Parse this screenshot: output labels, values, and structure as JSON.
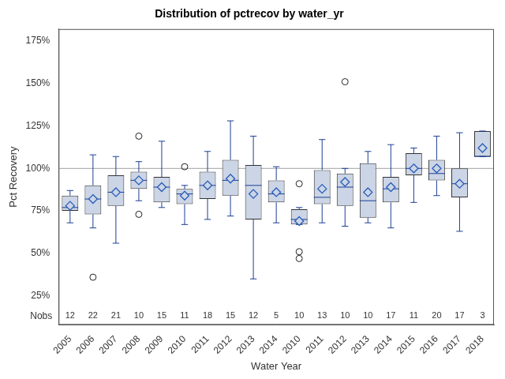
{
  "chart_data": {
    "type": "box",
    "title": "Distribution of pctrecov by water_yr",
    "x_label": "Water Year",
    "y_label": "Pct Recovery",
    "categories": [
      "2005",
      "2006",
      "2007",
      "2008",
      "2009",
      "2010",
      "2011",
      "2012",
      "2013",
      "2014",
      "2010",
      "2011",
      "2012",
      "2013",
      "2014",
      "2015",
      "2016",
      "2017",
      "2018"
    ],
    "boxes": [
      {
        "min": 68,
        "q1": 75,
        "median": 77,
        "q3": 84,
        "max": 87,
        "mean": 78,
        "outliers": []
      },
      {
        "min": 65,
        "q1": 73,
        "median": 82,
        "q3": 90,
        "max": 108,
        "mean": 82,
        "outliers": [
          36
        ]
      },
      {
        "min": 56,
        "q1": 78,
        "median": 86,
        "q3": 96,
        "max": 107,
        "mean": 86,
        "outliers": []
      },
      {
        "min": 81,
        "q1": 88,
        "median": 93,
        "q3": 98,
        "max": 104,
        "mean": 93,
        "outliers": [
          119,
          73
        ]
      },
      {
        "min": 77,
        "q1": 80,
        "median": 89,
        "q3": 95,
        "max": 116,
        "mean": 89,
        "outliers": []
      },
      {
        "min": 67,
        "q1": 79,
        "median": 85,
        "q3": 88,
        "max": 90,
        "mean": 84,
        "outliers": [
          101
        ]
      },
      {
        "min": 70,
        "q1": 82,
        "median": 90,
        "q3": 98,
        "max": 110,
        "mean": 90,
        "outliers": []
      },
      {
        "min": 72,
        "q1": 84,
        "median": 93,
        "q3": 105,
        "max": 128,
        "mean": 94,
        "outliers": []
      },
      {
        "min": 35,
        "q1": 70,
        "median": 90,
        "q3": 102,
        "max": 119,
        "mean": 85,
        "outliers": []
      },
      {
        "min": 68,
        "q1": 80,
        "median": 85,
        "q3": 93,
        "max": 101,
        "mean": 86,
        "outliers": []
      },
      {
        "min": 67,
        "q1": 67,
        "median": 70,
        "q3": 76,
        "max": 77,
        "mean": 69,
        "outliers": [
          91,
          51,
          47
        ]
      },
      {
        "min": 68,
        "q1": 79,
        "median": 83,
        "q3": 99,
        "max": 117,
        "mean": 88,
        "outliers": []
      },
      {
        "min": 66,
        "q1": 78,
        "median": 89,
        "q3": 97,
        "max": 100,
        "mean": 92,
        "outliers": [
          151
        ]
      },
      {
        "min": 68,
        "q1": 71,
        "median": 81,
        "q3": 103,
        "max": 110,
        "mean": 86,
        "outliers": []
      },
      {
        "min": 65,
        "q1": 80,
        "median": 88,
        "q3": 95,
        "max": 114,
        "mean": 89,
        "outliers": []
      },
      {
        "min": 80,
        "q1": 96,
        "median": 100,
        "q3": 109,
        "max": 112,
        "mean": 100,
        "outliers": []
      },
      {
        "min": 84,
        "q1": 93,
        "median": 97,
        "q3": 105,
        "max": 119,
        "mean": 100,
        "outliers": []
      },
      {
        "min": 63,
        "q1": 83,
        "median": 91,
        "q3": 100,
        "max": 121,
        "mean": 91,
        "outliers": []
      },
      {
        "min": 107,
        "q1": 107,
        "median": 107,
        "q3": 122,
        "max": 122,
        "mean": 112,
        "outliers": []
      }
    ],
    "nobs_label": "Nobs",
    "nobs": [
      12,
      22,
      21,
      10,
      15,
      11,
      18,
      15,
      12,
      5,
      10,
      13,
      10,
      10,
      17,
      11,
      20,
      17,
      3
    ],
    "ref_line": 100,
    "color": "#cbd5e6",
    "ylim": [
      8,
      182
    ],
    "yticks": [
      {
        "value": 25,
        "label": "25%"
      },
      {
        "value": 50,
        "label": "50%"
      },
      {
        "value": 75,
        "label": "75%"
      },
      {
        "value": 100,
        "label": "100%"
      },
      {
        "value": 125,
        "label": "125%"
      },
      {
        "value": 150,
        "label": "150%"
      },
      {
        "value": 175,
        "label": "175%"
      }
    ],
    "grid": false
  }
}
